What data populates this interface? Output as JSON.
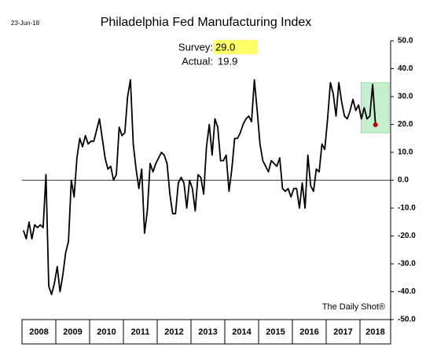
{
  "chart_data": {
    "type": "line",
    "title": "Philadelphia Fed Manufacturing Index",
    "date_label": "23-Jun-18",
    "source": "The Daily Shot®",
    "annotations": {
      "survey_label": "Survey:",
      "survey_value": "29.0",
      "actual_label": "Actual:",
      "actual_value": "19.9"
    },
    "year_labels": [
      "2008",
      "2009",
      "2010",
      "2011",
      "2012",
      "2013",
      "2014",
      "2015",
      "2016",
      "2017",
      "2018"
    ],
    "series": [
      {
        "name": "Philadelphia Fed Manufacturing Index",
        "color": "#000000",
        "values": [
          -18,
          -21,
          -15,
          -21,
          -16,
          -17,
          -16,
          -17,
          2,
          -38,
          -41,
          -37,
          -31,
          -40,
          -34,
          -26,
          -22,
          0,
          -6,
          8,
          15,
          12,
          16,
          13,
          14,
          14,
          18,
          22,
          15,
          8,
          4,
          5,
          0,
          2,
          19,
          16,
          17,
          30,
          36,
          13,
          4,
          -3,
          4,
          -19,
          -11,
          6,
          3,
          6,
          8,
          10,
          9,
          6,
          -5,
          -12,
          -12,
          -1,
          1,
          -1,
          -10,
          0,
          -3,
          -11,
          2,
          1,
          -5,
          12,
          20,
          9,
          22,
          19,
          7,
          7,
          9,
          -4,
          4,
          15,
          15,
          17,
          20,
          22,
          23,
          21,
          36,
          25,
          13,
          7,
          5,
          3,
          7,
          6,
          5,
          8,
          -3,
          -4,
          -3,
          -6,
          -3,
          -3,
          -10,
          -1,
          -10,
          9,
          -2,
          -4,
          4,
          3,
          13,
          11,
          22,
          35,
          31,
          23,
          35,
          28,
          23,
          22,
          25,
          29,
          25,
          27,
          22,
          26,
          22,
          23,
          34.4,
          19.9
        ]
      }
    ],
    "highlight_color": "#c6efce",
    "last_point_color": "#c00000",
    "ylim": [
      -50,
      50
    ],
    "yticks": [
      {
        "value": -50,
        "label": "-50.0"
      },
      {
        "value": -40,
        "label": "-40.0"
      },
      {
        "value": -30,
        "label": "-30.0"
      },
      {
        "value": -20,
        "label": "-20.0"
      },
      {
        "value": -10,
        "label": "-10.0"
      },
      {
        "value": 0,
        "label": "0.0"
      },
      {
        "value": 10,
        "label": "10.0"
      },
      {
        "value": 20,
        "label": "20.0"
      },
      {
        "value": 30,
        "label": "30.0"
      },
      {
        "value": 40,
        "label": "40.0"
      },
      {
        "value": 50,
        "label": "50.0"
      }
    ]
  }
}
